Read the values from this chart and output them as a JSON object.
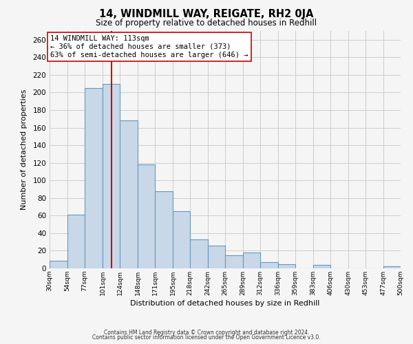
{
  "title": "14, WINDMILL WAY, REIGATE, RH2 0JA",
  "subtitle": "Size of property relative to detached houses in Redhill",
  "xlabel": "Distribution of detached houses by size in Redhill",
  "ylabel": "Number of detached properties",
  "footnote1": "Contains HM Land Registry data © Crown copyright and database right 2024.",
  "footnote2": "Contains public sector information licensed under the Open Government Licence v3.0.",
  "bin_labels": [
    "30sqm",
    "54sqm",
    "77sqm",
    "101sqm",
    "124sqm",
    "148sqm",
    "171sqm",
    "195sqm",
    "218sqm",
    "242sqm",
    "265sqm",
    "289sqm",
    "312sqm",
    "336sqm",
    "359sqm",
    "383sqm",
    "406sqm",
    "430sqm",
    "453sqm",
    "477sqm",
    "500sqm"
  ],
  "bar_heights": [
    9,
    61,
    205,
    210,
    168,
    118,
    88,
    65,
    33,
    26,
    15,
    18,
    7,
    5,
    0,
    4,
    0,
    0,
    0,
    2,
    0
  ],
  "bar_color": "#c8d8e8",
  "bar_edge_color": "#6699bb",
  "vline_x": 113,
  "vline_color": "#cc0000",
  "annotation_line1": "14 WINDMILL WAY: 113sqm",
  "annotation_line2": "← 36% of detached houses are smaller (373)",
  "annotation_line3": "63% of semi-detached houses are larger (646) →",
  "annotation_box_color": "#ffffff",
  "annotation_box_edge": "#cc0000",
  "ylim": [
    0,
    270
  ],
  "yticks": [
    0,
    20,
    40,
    60,
    80,
    100,
    120,
    140,
    160,
    180,
    200,
    220,
    240,
    260
  ],
  "grid_color": "#cccccc",
  "background_color": "#f5f5f5",
  "bin_edges": [
    30,
    54,
    77,
    101,
    124,
    148,
    171,
    195,
    218,
    242,
    265,
    289,
    312,
    336,
    359,
    383,
    406,
    430,
    453,
    477,
    500
  ]
}
